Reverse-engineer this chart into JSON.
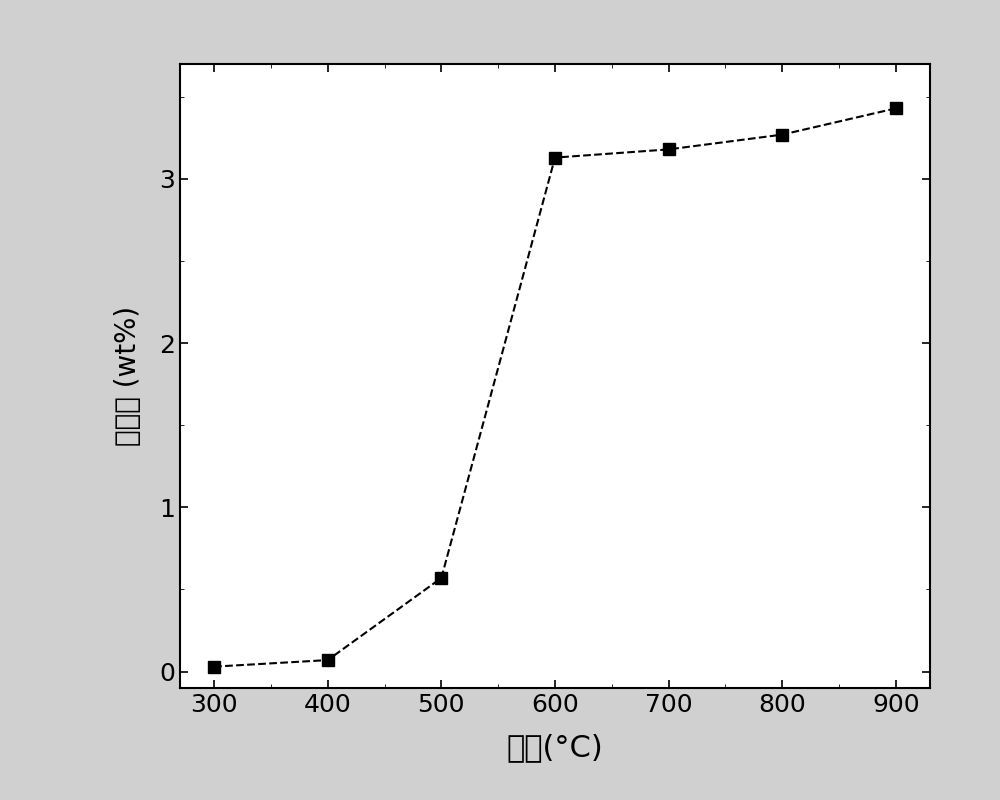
{
  "x": [
    300,
    400,
    500,
    600,
    700,
    800,
    900
  ],
  "y": [
    0.03,
    0.07,
    0.57,
    3.13,
    3.18,
    3.27,
    3.43
  ],
  "xlabel": "温度(°C)",
  "ylabel": "储氢量 (wt%)",
  "xlim": [
    270,
    930
  ],
  "ylim": [
    -0.1,
    3.7
  ],
  "xticks": [
    300,
    400,
    500,
    600,
    700,
    800,
    900
  ],
  "yticks": [
    0,
    1,
    2,
    3
  ],
  "marker": "s",
  "marker_color": "#000000",
  "line_color": "#000000",
  "line_style": "--",
  "marker_size": 9,
  "line_width": 1.5,
  "xlabel_fontsize": 22,
  "ylabel_fontsize": 20,
  "tick_fontsize": 18,
  "figure_bg": "#d0d0d0",
  "axes_bg": "#ffffff"
}
